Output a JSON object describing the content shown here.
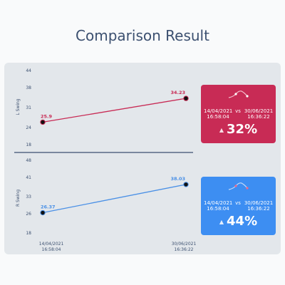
{
  "title": "Comparison Result",
  "chart_data": [
    {
      "type": "line",
      "ylabel": "L Swing",
      "yticks": [
        18,
        24,
        31,
        38,
        44
      ],
      "ylim": [
        18,
        44
      ],
      "categories": [
        "14/04/2021 16:58:04",
        "30/06/2021 16:36:22"
      ],
      "values": [
        25.9,
        34.23
      ],
      "data_labels": [
        "25.9",
        "34.23"
      ],
      "color": "#c82b55"
    },
    {
      "type": "line",
      "ylabel": "R Swing",
      "yticks": [
        18,
        26,
        33,
        41,
        48
      ],
      "ylim": [
        18,
        48
      ],
      "categories": [
        "14/04/2021 16:58:04",
        "30/06/2021 16:36:22"
      ],
      "values": [
        26.37,
        38.03
      ],
      "data_labels": [
        "26.37",
        "38.03"
      ],
      "color": "#4a90e6"
    }
  ],
  "x_labels": [
    {
      "date": "14/04/2021",
      "time": "16:58:04"
    },
    {
      "date": "30/06/2021",
      "time": "16:36:22"
    }
  ],
  "cards": [
    {
      "date1": "14/04/2021",
      "time1": "16:58:04",
      "vs": "vs",
      "date2": "30/06/2021",
      "time2": "16:36:22",
      "percent": "32%",
      "color": "#c82b55"
    },
    {
      "date1": "14/04/2021",
      "time1": "16:58:04",
      "vs": "vs",
      "date2": "30/06/2021",
      "time2": "16:36:22",
      "percent": "44%",
      "color": "#3d8ef2"
    }
  ]
}
